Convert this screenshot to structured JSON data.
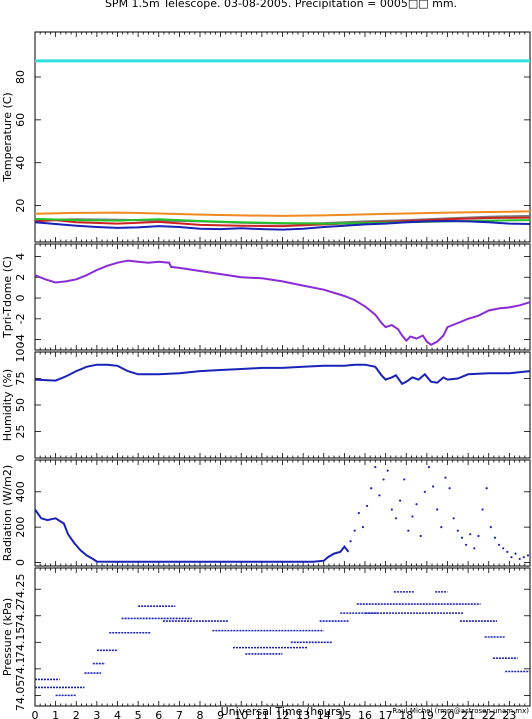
{
  "title": "SPM 1.5m Telescope. 03-08-2005. Precipitation = 0005□□ mm.",
  "credit": "Raul Michel (rmm@astrosen.unam.mx)",
  "xlabel": "Universal Time (hours)",
  "colors": {
    "cyan": "#33e0e0",
    "orange": "#f08a1e",
    "green": "#22c22a",
    "red": "#cc2222",
    "gray": "#7a7a7a",
    "blue": "#1a22b8",
    "purple": "#8a2bd8"
  },
  "chart_data": [
    {
      "id": "temperature",
      "type": "line",
      "ylabel": "Temperature (C)",
      "xlim": [
        0,
        24
      ],
      "ylim": [
        3,
        101
      ],
      "xticks": [
        "0",
        "1",
        "2",
        "3",
        "4",
        "5",
        "6",
        "7",
        "8",
        "9",
        "10",
        "11",
        "12",
        "13",
        "14",
        "15",
        "16",
        "17",
        "18",
        "19",
        "20",
        "21",
        "22",
        "23"
      ],
      "yticks": [
        20,
        40,
        60,
        80
      ],
      "series": [
        {
          "color": "cyan",
          "x": [
            0,
            24
          ],
          "y": [
            87.5,
            87.5
          ]
        },
        {
          "color": "orange",
          "x": [
            0,
            2,
            4,
            6,
            8,
            10,
            12,
            14,
            16,
            18,
            20,
            22,
            24
          ],
          "y": [
            16.2,
            16.6,
            16.7,
            16.3,
            15.8,
            15.4,
            15.2,
            15.4,
            15.9,
            16.3,
            16.7,
            17.0,
            17.3
          ]
        },
        {
          "color": "gray",
          "x": [
            0,
            2,
            4,
            6,
            8,
            10,
            12,
            14,
            16,
            18,
            20,
            22,
            24
          ],
          "y": [
            13.2,
            13.6,
            13.4,
            13.0,
            12.6,
            12.0,
            11.6,
            11.8,
            12.6,
            13.2,
            14.0,
            14.8,
            15.2
          ]
        },
        {
          "color": "red",
          "x": [
            0,
            1,
            2,
            4,
            6,
            8,
            10,
            12,
            14,
            16,
            18,
            20,
            22,
            24
          ],
          "y": [
            12.6,
            13.2,
            12.2,
            11.6,
            12.4,
            11.0,
            10.6,
            10.4,
            11.2,
            12.0,
            12.8,
            13.6,
            14.2,
            14.4
          ]
        },
        {
          "color": "green",
          "x": [
            0,
            2,
            4,
            6,
            8,
            10,
            12,
            14,
            16,
            18,
            20,
            22,
            24
          ],
          "y": [
            13.8,
            13.2,
            13.0,
            13.6,
            12.8,
            12.2,
            11.8,
            11.6,
            11.8,
            12.2,
            12.6,
            13.0,
            13.2
          ]
        },
        {
          "color": "blue",
          "x": [
            0,
            1,
            2,
            3,
            4,
            5,
            6,
            7,
            8,
            9,
            10,
            11,
            12,
            13,
            14,
            15,
            16,
            17,
            18,
            19,
            20,
            21,
            22,
            23,
            24
          ],
          "y": [
            12.2,
            11.4,
            10.6,
            10.0,
            9.6,
            9.8,
            10.4,
            10.0,
            9.2,
            9.0,
            9.4,
            9.0,
            8.8,
            9.2,
            10.0,
            10.6,
            11.2,
            11.6,
            12.2,
            12.6,
            12.8,
            12.6,
            12.2,
            11.6,
            11.4
          ]
        }
      ]
    },
    {
      "id": "tdiff",
      "type": "line",
      "ylabel": "Tpri-Tdome (C)",
      "xlim": [
        0,
        24
      ],
      "ylim": [
        -5,
        5.2
      ],
      "xticks": [
        "0",
        "1",
        "2",
        "3",
        "4",
        "5",
        "6",
        "7",
        "8",
        "9",
        "10",
        "11",
        "12",
        "13",
        "14",
        "15",
        "16",
        "17",
        "18",
        "19",
        "20",
        "21",
        "22",
        "23"
      ],
      "yticks": [
        -4,
        -2,
        0,
        2,
        4
      ],
      "series": [
        {
          "color": "purple",
          "x": [
            0,
            0.5,
            1,
            1.5,
            2,
            2.5,
            3,
            3.5,
            4,
            4.5,
            5,
            5.5,
            6,
            6.5,
            6.6,
            7,
            8,
            9,
            10,
            11,
            12,
            13,
            14,
            15,
            15.5,
            16,
            16.5,
            16.8,
            17,
            17.3,
            17.6,
            17.8,
            18,
            18.2,
            18.5,
            18.8,
            19,
            19.2,
            19.5,
            19.8,
            20,
            20.5,
            21,
            21.5,
            22,
            22.5,
            23,
            23.5,
            24
          ],
          "y": [
            2.2,
            1.8,
            1.5,
            1.6,
            1.8,
            2.2,
            2.7,
            3.1,
            3.4,
            3.6,
            3.5,
            3.4,
            3.5,
            3.4,
            3.0,
            2.9,
            2.6,
            2.3,
            2.0,
            1.9,
            1.6,
            1.2,
            0.8,
            0.2,
            -0.2,
            -0.8,
            -1.6,
            -2.4,
            -2.8,
            -2.6,
            -3.0,
            -3.6,
            -4.1,
            -3.7,
            -3.9,
            -3.6,
            -4.2,
            -4.5,
            -4.2,
            -3.6,
            -2.8,
            -2.4,
            -2.0,
            -1.7,
            -1.2,
            -1.0,
            -0.9,
            -0.7,
            -0.4
          ]
        }
      ]
    },
    {
      "id": "humidity",
      "type": "line",
      "ylabel": "Humidity (%)",
      "xlim": [
        0,
        24
      ],
      "ylim": [
        0,
        100
      ],
      "xticks": [
        "0",
        "1",
        "2",
        "3",
        "4",
        "5",
        "6",
        "7",
        "8",
        "9",
        "10",
        "11",
        "12",
        "13",
        "14",
        "15",
        "16",
        "17",
        "18",
        "19",
        "20",
        "21",
        "22",
        "23"
      ],
      "yticks": [
        0,
        25,
        50,
        75,
        100
      ],
      "series": [
        {
          "color": "blue",
          "x": [
            0,
            1,
            1.5,
            2,
            2.5,
            3,
            3.5,
            4,
            4.5,
            5,
            6,
            7,
            8,
            9,
            10,
            11,
            12,
            13,
            14,
            15,
            15.5,
            16,
            16.5,
            16.8,
            17,
            17.3,
            17.5,
            17.8,
            18,
            18.3,
            18.6,
            18.9,
            19.2,
            19.5,
            19.8,
            20,
            20.5,
            21,
            22,
            23,
            24
          ],
          "y": [
            74,
            73,
            77,
            82,
            86,
            88,
            88,
            87,
            82,
            79,
            79,
            80,
            82,
            83,
            84,
            85,
            85,
            86,
            87,
            87,
            88,
            88,
            86,
            78,
            74,
            76,
            78,
            70,
            72,
            76,
            74,
            79,
            72,
            71,
            76,
            74,
            75,
            79,
            80,
            80,
            82
          ]
        }
      ]
    },
    {
      "id": "radiation",
      "type": "scatter",
      "ylabel": "Radiation (W/m2)",
      "xlim": [
        0,
        24
      ],
      "ylim": [
        -20,
        580
      ],
      "xticks": [
        "0",
        "1",
        "2",
        "3",
        "4",
        "5",
        "6",
        "7",
        "8",
        "9",
        "10",
        "11",
        "12",
        "13",
        "14",
        "15",
        "16",
        "17",
        "18",
        "19",
        "20",
        "21",
        "22",
        "23"
      ],
      "yticks": [
        0,
        200,
        400
      ],
      "series": [
        {
          "color": "blue",
          "style": "line",
          "x": [
            0,
            0.3,
            0.6,
            1.0,
            1.4,
            1.6,
            1.9,
            2.2,
            2.5,
            2.8,
            3.0,
            4,
            6,
            8,
            10,
            12,
            13,
            13.5,
            14,
            14.2,
            14.5,
            14.8,
            15.0,
            15.2
          ],
          "y": [
            300,
            250,
            240,
            250,
            220,
            160,
            110,
            70,
            40,
            20,
            5,
            4,
            4,
            4,
            4,
            4,
            4,
            4,
            10,
            30,
            50,
            60,
            90,
            60
          ]
        },
        {
          "color": "blue",
          "style": "dots",
          "x": [
            15.3,
            15.5,
            15.7,
            15.9,
            16.1,
            16.3,
            16.5,
            16.7,
            16.9,
            17.1,
            17.3,
            17.5,
            17.7,
            17.9,
            18.1,
            18.3,
            18.5,
            18.7,
            18.9,
            19.1,
            19.3,
            19.5,
            19.7,
            19.9,
            20.1,
            20.3,
            20.5,
            20.7,
            20.9,
            21.1,
            21.3,
            21.5,
            21.7,
            21.9,
            22.1,
            22.3,
            22.5,
            22.7,
            22.9,
            23.1,
            23.3,
            23.5,
            23.7,
            23.9
          ],
          "y": [
            120,
            180,
            280,
            200,
            320,
            420,
            540,
            380,
            470,
            520,
            300,
            250,
            350,
            470,
            180,
            260,
            330,
            150,
            400,
            540,
            430,
            300,
            200,
            480,
            420,
            250,
            180,
            140,
            100,
            160,
            80,
            150,
            300,
            420,
            200,
            140,
            100,
            80,
            60,
            30,
            50,
            20,
            30,
            40
          ]
        }
      ]
    },
    {
      "id": "pressure",
      "type": "scatter",
      "ylabel": "Pressure (kPa)",
      "xlim": [
        0,
        24
      ],
      "ylim": [
        74.03,
        74.29
      ],
      "xticks": [
        "0",
        "1",
        "2",
        "3",
        "4",
        "5",
        "6",
        "7",
        "8",
        "9",
        "10",
        "11",
        "12",
        "13",
        "14",
        "15",
        "16",
        "17",
        "18",
        "19",
        "20",
        "21",
        "22",
        "23"
      ],
      "xtick_labels": [
        "0",
        "1",
        "2",
        "3",
        "4",
        "5",
        "6",
        "7",
        "8",
        "9",
        "10",
        "11",
        "12",
        "13",
        "14",
        "15",
        "16",
        "17",
        "18",
        "19",
        "20",
        "21",
        "22",
        "23"
      ],
      "ytick_labels": [
        "74.05",
        "74.1",
        "74.15",
        "74.2",
        "74.25"
      ],
      "yticks": [
        74.05,
        74.1,
        74.15,
        74.2,
        74.25
      ],
      "steps": [
        {
          "x0": 0.0,
          "x1": 1.2,
          "y": 74.08
        },
        {
          "x0": 0.0,
          "x1": 2.4,
          "y": 74.065
        },
        {
          "x0": 1.0,
          "x1": 2.0,
          "y": 74.05
        },
        {
          "x0": 2.4,
          "x1": 3.2,
          "y": 74.092
        },
        {
          "x0": 2.8,
          "x1": 3.4,
          "y": 74.11
        },
        {
          "x0": 3.0,
          "x1": 4.0,
          "y": 74.135
        },
        {
          "x0": 3.6,
          "x1": 5.6,
          "y": 74.168
        },
        {
          "x0": 4.2,
          "x1": 7.6,
          "y": 74.195
        },
        {
          "x0": 5.0,
          "x1": 6.8,
          "y": 74.218
        },
        {
          "x0": 6.2,
          "x1": 9.4,
          "y": 74.19
        },
        {
          "x0": 8.6,
          "x1": 14.0,
          "y": 74.172
        },
        {
          "x0": 9.6,
          "x1": 13.2,
          "y": 74.14
        },
        {
          "x0": 10.2,
          "x1": 12.0,
          "y": 74.128
        },
        {
          "x0": 12.4,
          "x1": 14.4,
          "y": 74.15
        },
        {
          "x0": 13.8,
          "x1": 15.2,
          "y": 74.19
        },
        {
          "x0": 14.8,
          "x1": 16.6,
          "y": 74.205
        },
        {
          "x0": 15.6,
          "x1": 21.6,
          "y": 74.222
        },
        {
          "x0": 16.0,
          "x1": 20.8,
          "y": 74.205
        },
        {
          "x0": 17.4,
          "x1": 18.4,
          "y": 74.245
        },
        {
          "x0": 19.4,
          "x1": 20.0,
          "y": 74.245
        },
        {
          "x0": 20.6,
          "x1": 22.4,
          "y": 74.19
        },
        {
          "x0": 21.8,
          "x1": 22.8,
          "y": 74.16
        },
        {
          "x0": 22.2,
          "x1": 23.4,
          "y": 74.12
        },
        {
          "x0": 22.8,
          "x1": 24.0,
          "y": 74.095
        }
      ]
    }
  ]
}
